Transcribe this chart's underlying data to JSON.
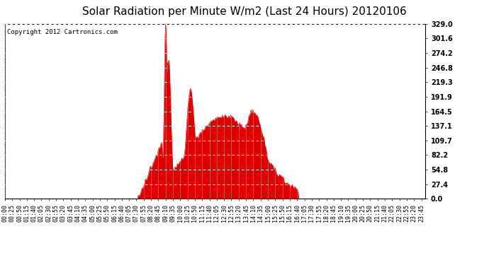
{
  "title": "Solar Radiation per Minute W/m2 (Last 24 Hours) 20120106",
  "copyright_text": "Copyright 2012 Cartronics.com",
  "y_max": 329.0,
  "y_min": 0.0,
  "y_ticks": [
    0.0,
    27.4,
    54.8,
    82.2,
    109.7,
    137.1,
    164.5,
    191.9,
    219.3,
    246.8,
    274.2,
    301.6,
    329.0
  ],
  "fill_color": "#dd0000",
  "line_color": "#dd0000",
  "background_color": "#ffffff",
  "plot_bg_color": "#ffffff",
  "grid_color": "#ffffff",
  "dashed_line_color": "#ff0000",
  "title_fontsize": 11,
  "copyright_fontsize": 6.5,
  "tick_fontsize": 6,
  "ytick_fontsize": 7,
  "sunrise": 455,
  "sunset": 1005,
  "n_points": 1440,
  "tick_step": 25
}
